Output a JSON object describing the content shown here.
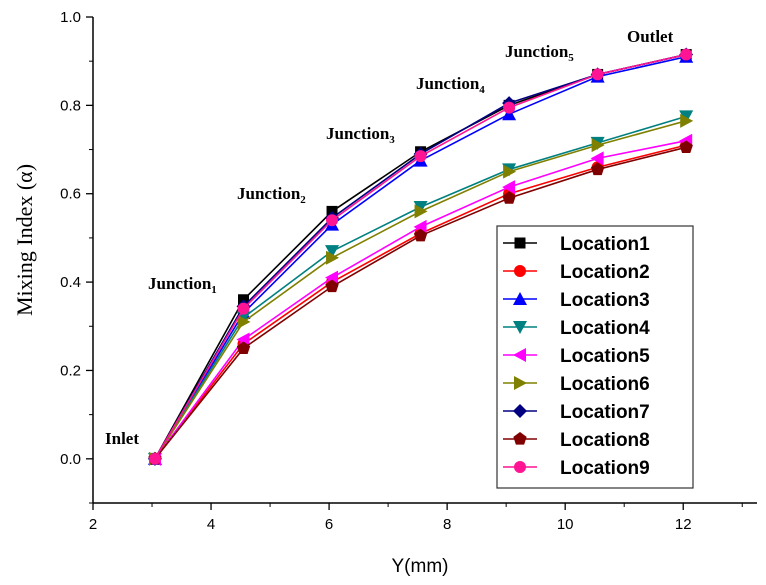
{
  "chart_data": {
    "type": "line",
    "title": "",
    "xlabel": "Y(mm)",
    "ylabel": "Mixing Index (α)",
    "xlim": [
      2,
      13.25
    ],
    "ylim": [
      -0.1,
      1.0
    ],
    "xticks": [
      2,
      4,
      6,
      8,
      10,
      12
    ],
    "xtick_labels": [
      "2",
      "4",
      "6",
      "8",
      "10",
      "12"
    ],
    "yticks": [
      0.0,
      0.2,
      0.4,
      0.6,
      0.8,
      1.0
    ],
    "ytick_labels": [
      "0.0",
      "0.2",
      "0.4",
      "0.6",
      "0.8",
      "1.0"
    ],
    "grid": false,
    "legend_position": "bottom-right",
    "x": [
      3.05,
      4.55,
      6.05,
      7.55,
      9.05,
      10.55,
      12.05
    ],
    "series": [
      {
        "name": "Location1",
        "color": "#000000",
        "marker": "square",
        "values": [
          0,
          0.36,
          0.56,
          0.695,
          0.8,
          0.87,
          0.915
        ]
      },
      {
        "name": "Location2",
        "color": "#ff0000",
        "marker": "circle",
        "values": [
          0,
          0.26,
          0.4,
          0.51,
          0.6,
          0.66,
          0.71
        ]
      },
      {
        "name": "Location3",
        "color": "#0000ff",
        "marker": "triangle-up",
        "values": [
          0,
          0.33,
          0.53,
          0.675,
          0.78,
          0.865,
          0.91
        ]
      },
      {
        "name": "Location4",
        "color": "#008080",
        "marker": "triangle-down",
        "values": [
          0,
          0.32,
          0.47,
          0.57,
          0.655,
          0.715,
          0.775
        ]
      },
      {
        "name": "Location5",
        "color": "#ff00ff",
        "marker": "triangle-left",
        "values": [
          0,
          0.27,
          0.41,
          0.525,
          0.615,
          0.68,
          0.72
        ]
      },
      {
        "name": "Location6",
        "color": "#808000",
        "marker": "triangle-right",
        "values": [
          0,
          0.31,
          0.455,
          0.56,
          0.65,
          0.71,
          0.765
        ]
      },
      {
        "name": "Location7",
        "color": "#000080",
        "marker": "diamond",
        "values": [
          0,
          0.345,
          0.545,
          0.69,
          0.805,
          0.87,
          0.915
        ]
      },
      {
        "name": "Location8",
        "color": "#800000",
        "marker": "pentagon",
        "values": [
          0,
          0.25,
          0.39,
          0.505,
          0.59,
          0.655,
          0.705
        ]
      },
      {
        "name": "Location9",
        "color": "#ff1493",
        "marker": "circle",
        "values": [
          0,
          0.34,
          0.54,
          0.685,
          0.795,
          0.87,
          0.915
        ]
      }
    ],
    "annotations": [
      {
        "text": "Inlet",
        "sub": ""
      },
      {
        "text": "Junction",
        "sub": "1"
      },
      {
        "text": "Junction",
        "sub": "2"
      },
      {
        "text": "Junction",
        "sub": "3"
      },
      {
        "text": "Junction",
        "sub": "4"
      },
      {
        "text": "Junction",
        "sub": "5"
      },
      {
        "text": "Outlet",
        "sub": ""
      }
    ]
  }
}
